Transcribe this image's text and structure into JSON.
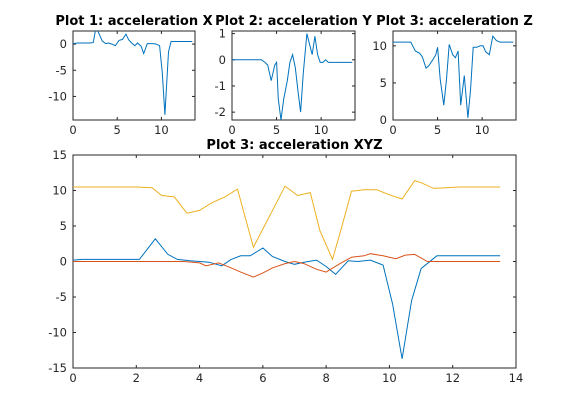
{
  "chart_data": [
    {
      "type": "line",
      "title": "Plot 1: acceleration X",
      "xlabel": "",
      "ylabel": "",
      "xlim": [
        0,
        13.8
      ],
      "ylim": [
        -14.5,
        2.5
      ],
      "xticks": [
        0,
        5,
        10
      ],
      "yticks": [
        0,
        -5,
        -10
      ],
      "grid": false,
      "series": [
        {
          "color": "#0072BD",
          "x": [
            0,
            0.5,
            1,
            1.5,
            2,
            2.3,
            2.6,
            3,
            3.3,
            3.7,
            4,
            4.4,
            4.8,
            5.2,
            5.6,
            6,
            6.3,
            6.7,
            7,
            7.3,
            7.7,
            8,
            8.4,
            8.7,
            9.1,
            9.4,
            9.8,
            10.1,
            10.4,
            10.8,
            11.1,
            11.5,
            12,
            12.5,
            13,
            13.5
          ],
          "y": [
            0.1,
            0.2,
            0.2,
            0.2,
            0.2,
            0.3,
            3.2,
            1.8,
            0.6,
            0.1,
            0.2,
            0,
            -0.3,
            0.7,
            0.9,
            1.9,
            0.8,
            0.1,
            -0.3,
            0.2,
            -0.4,
            -1.8,
            0.1,
            0.1,
            0.1,
            0,
            -0.3,
            -5.5,
            -13.5,
            -1.5,
            0.5,
            0.5,
            0.5,
            0.5,
            0.5,
            0.5
          ]
        }
      ]
    },
    {
      "type": "line",
      "title": "Plot 2: acceleration Y",
      "xlabel": "",
      "ylabel": "",
      "xlim": [
        0,
        13.8
      ],
      "ylim": [
        -2.3,
        1.1
      ],
      "xticks": [
        0,
        5,
        10
      ],
      "yticks": [
        1,
        0,
        -1,
        -2
      ],
      "grid": false,
      "series": [
        {
          "color": "#0072BD",
          "x": [
            0,
            0.5,
            1,
            1.5,
            2,
            2.5,
            3,
            3.3,
            3.7,
            4,
            4.4,
            4.8,
            5,
            5.2,
            5.5,
            5.8,
            6.2,
            6.5,
            6.8,
            7.1,
            7.4,
            7.7,
            8,
            8.4,
            8.7,
            9,
            9.3,
            9.6,
            9.9,
            10.2,
            10.5,
            10.8,
            11.2,
            11.6,
            12,
            12.5,
            13,
            13.5
          ],
          "y": [
            0,
            0,
            0,
            0,
            0,
            0,
            0,
            0,
            -0.1,
            -0.2,
            -0.8,
            -0.2,
            -0.1,
            -1.5,
            -2.3,
            -1.5,
            -0.8,
            -0.1,
            0.2,
            -0.3,
            -1.2,
            -2,
            -0.5,
            1,
            0.6,
            0.2,
            0.9,
            0.2,
            -0.1,
            -0.1,
            0,
            -0.1,
            -0.1,
            -0.1,
            -0.1,
            -0.1,
            -0.1,
            -0.1
          ]
        }
      ]
    },
    {
      "type": "line",
      "title": "Plot 3: acceleration Z",
      "xlabel": "",
      "ylabel": "",
      "xlim": [
        0,
        13.8
      ],
      "ylim": [
        0,
        12
      ],
      "xticks": [
        0,
        5,
        10
      ],
      "yticks": [
        10,
        5,
        0
      ],
      "grid": false,
      "series": [
        {
          "color": "#0072BD",
          "x": [
            0,
            0.5,
            1,
            1.5,
            2,
            2.5,
            3,
            3.3,
            3.7,
            4,
            4.4,
            4.8,
            5,
            5.3,
            5.7,
            6,
            6.3,
            6.7,
            7,
            7.3,
            7.6,
            8,
            8.4,
            8.7,
            9,
            9.4,
            9.8,
            10.1,
            10.4,
            10.8,
            11,
            11.2,
            11.6,
            12,
            12.5,
            13,
            13.5
          ],
          "y": [
            10.5,
            10.5,
            10.5,
            10.5,
            10.5,
            9.3,
            9,
            8.5,
            7,
            7.3,
            8,
            8.8,
            9.8,
            5.5,
            2,
            5.5,
            10.2,
            8.8,
            8.4,
            9.3,
            2,
            6,
            0.3,
            4,
            9.8,
            9.8,
            10,
            10,
            9.2,
            8.8,
            10,
            11.3,
            10.7,
            10.5,
            10.5,
            10.5,
            10.5
          ]
        }
      ]
    },
    {
      "type": "line",
      "title": "Plot 3: acceleration XYZ",
      "xlabel": "",
      "ylabel": "",
      "xlim": [
        0,
        14
      ],
      "ylim": [
        -15,
        15
      ],
      "xticks": [
        0,
        2,
        4,
        6,
        8,
        10,
        12,
        14
      ],
      "yticks": [
        15,
        10,
        5,
        0,
        -5,
        -10,
        -15
      ],
      "grid": false,
      "series": [
        {
          "color": "#0072BD",
          "x": [
            0,
            0.3,
            0.6,
            1,
            1.4,
            1.8,
            2.1,
            2.6,
            3,
            3.3,
            3.7,
            4,
            4.3,
            4.7,
            5,
            5.3,
            5.6,
            6,
            6.3,
            6.7,
            7,
            7.3,
            7.7,
            8,
            8.3,
            8.7,
            9,
            9.4,
            9.8,
            10.1,
            10.4,
            10.7,
            11,
            11.5,
            12,
            12.5,
            13,
            13.5
          ],
          "y": [
            0.2,
            0.3,
            0.3,
            0.3,
            0.3,
            0.3,
            0.3,
            3.2,
            1,
            0.3,
            0.1,
            0,
            -0.1,
            -0.6,
            0.3,
            0.8,
            0.8,
            1.9,
            0.7,
            0,
            -0.4,
            -0.1,
            0.2,
            -0.7,
            -1.8,
            0.1,
            0,
            0.2,
            -0.5,
            -6,
            -13.7,
            -5.5,
            -1,
            0.8,
            0.8,
            0.8,
            0.8,
            0.8
          ]
        },
        {
          "color": "#D95319",
          "x": [
            0,
            0.5,
            1,
            1.5,
            2,
            2.5,
            3,
            3.5,
            4,
            4.2,
            4.6,
            5,
            5.3,
            5.7,
            6,
            6.3,
            6.7,
            7,
            7.3,
            7.7,
            8,
            8.4,
            8.8,
            9.2,
            9.4,
            9.8,
            10.2,
            10.5,
            10.8,
            11.2,
            11.6,
            12,
            12.5,
            13,
            13.5
          ],
          "y": [
            0,
            0,
            0,
            0,
            0,
            0,
            0,
            0,
            -0.2,
            -0.6,
            -0.2,
            -0.9,
            -1.5,
            -2.2,
            -1.6,
            -0.9,
            -0.3,
            0,
            -0.3,
            -1.1,
            -1.5,
            -0.4,
            0.6,
            0.8,
            1.1,
            0.8,
            0.4,
            0.9,
            1,
            0,
            0,
            0,
            0,
            0,
            0
          ]
        },
        {
          "color": "#EDB120",
          "x": [
            0,
            0.5,
            1,
            1.5,
            2,
            2.5,
            2.8,
            3.2,
            3.6,
            4,
            4.4,
            4.8,
            5.2,
            5.7,
            6.2,
            6.7,
            7.1,
            7.5,
            7.8,
            8.2,
            8.5,
            8.8,
            9.2,
            9.6,
            10,
            10.4,
            10.8,
            11,
            11.4,
            11.8,
            12.2,
            12.6,
            13,
            13.5
          ],
          "y": [
            10.5,
            10.5,
            10.5,
            10.5,
            10.5,
            10.4,
            9.3,
            9.1,
            6.8,
            7.2,
            8.3,
            9.1,
            10.2,
            2,
            6.3,
            10.6,
            9.3,
            9.7,
            4.4,
            0.3,
            5,
            9.9,
            10.1,
            10.1,
            9.4,
            8.8,
            11.4,
            11.1,
            10.3,
            10.4,
            10.5,
            10.5,
            10.5,
            10.5
          ]
        }
      ]
    }
  ]
}
